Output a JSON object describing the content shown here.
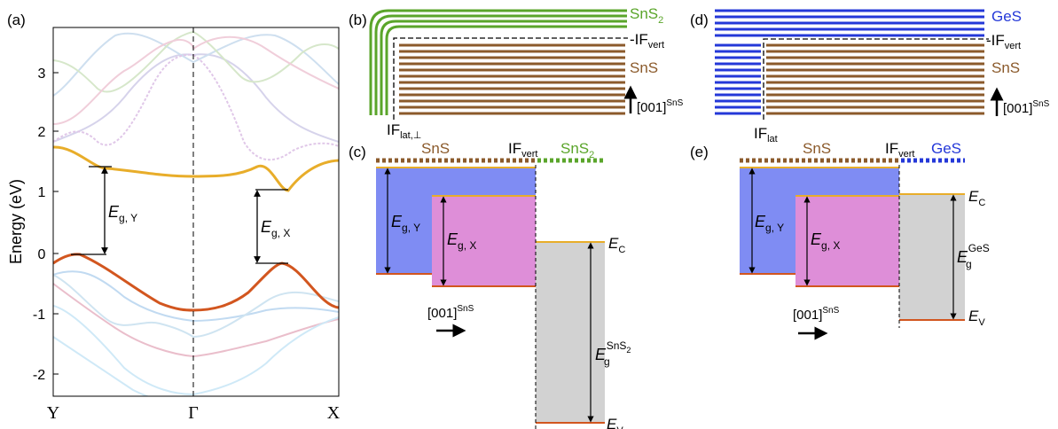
{
  "panels": {
    "a": "(a)",
    "b": "(b)",
    "c": "(c)",
    "d": "(d)",
    "e": "(e)"
  },
  "panel_a": {
    "ylabel": "Energy (eV)",
    "yticks": [
      "3",
      "2",
      "1",
      "0",
      "-1",
      "-2"
    ],
    "xticks": [
      "Y",
      "Γ",
      "X"
    ],
    "eg_y": "E",
    "eg_y_sub": "g, Y",
    "eg_x": "E",
    "eg_x_sub": "g, X",
    "colors": {
      "cb": "#e8ad2a",
      "vb": "#d2561f"
    }
  },
  "panel_b": {
    "top_label": "SnS",
    "top_sub": "2",
    "ifvert": "-IF",
    "ifvert_sub": "vert",
    "bulk_label": "SnS",
    "dir": "[001]",
    "dir_sup": "SnS",
    "iflat": "IF",
    "iflat_sub": "lat,⊥",
    "colors": {
      "green": "#5aa52a",
      "brown": "#8b5a2b"
    }
  },
  "panel_d": {
    "top_label": "GeS",
    "ifvert": "-IF",
    "ifvert_sub": "vert",
    "bulk_label": "SnS",
    "dir": "[001]",
    "dir_sup": "SnS",
    "iflat": "IF",
    "iflat_sub": "lat",
    "colors": {
      "blue": "#2438d8",
      "brown": "#8b5a2b"
    }
  },
  "panel_c": {
    "sns": "SnS",
    "if": "IF",
    "if_sub": "vert",
    "right": "SnS",
    "right_sub": "2",
    "egy": "E",
    "egy_sub": "g, Y",
    "egx": "E",
    "egx_sub": "g, X",
    "ec": "E",
    "ec_sub": "C",
    "eg": "E",
    "eg_sup": "SnS",
    "eg_sup_sub": "2",
    "eg_sub": "g",
    "ev": "E",
    "ev_sub": "V",
    "dir": "[001]",
    "dir_sup": "SnS",
    "colors": {
      "blue": "#7f8cf3",
      "pink": "#de8ed8",
      "gray": "#d2d2d2"
    }
  },
  "panel_e": {
    "sns": "SnS",
    "if": "IF",
    "if_sub": "vert",
    "right": "GeS",
    "egy": "E",
    "egy_sub": "g, Y",
    "egx": "E",
    "egx_sub": "g, X",
    "ec": "E",
    "ec_sub": "C",
    "eg": "E",
    "eg_sup": "GeS",
    "eg_sub": "g",
    "ev": "E",
    "ev_sub": "V",
    "dir": "[001]",
    "dir_sup": "SnS"
  }
}
